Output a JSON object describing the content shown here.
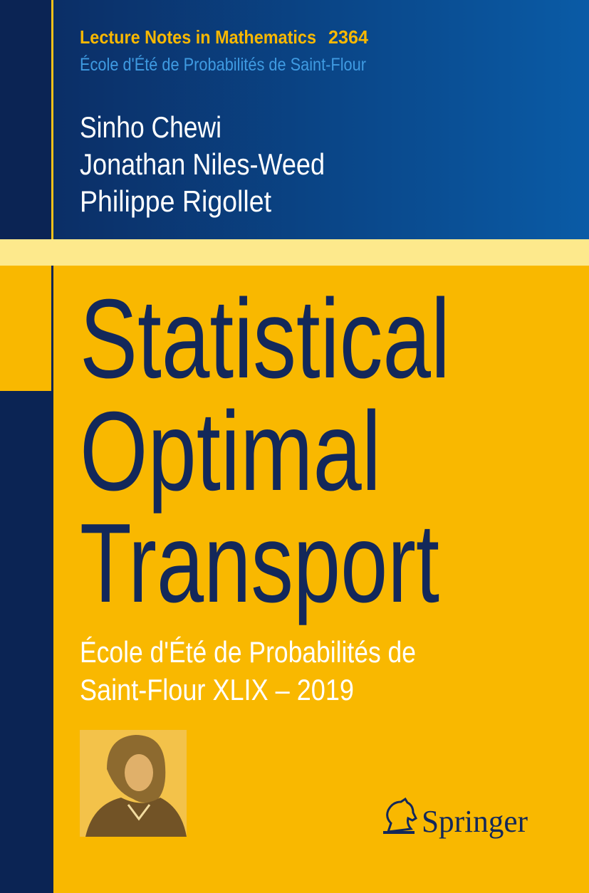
{
  "series": {
    "name": "Lecture Notes in Mathematics",
    "number": "2364",
    "subseries": "École d'Été de Probabilités de Saint-Flour"
  },
  "authors": [
    "Sinho Chewi",
    "Jonathan Niles-Weed",
    "Philippe Rigollet"
  ],
  "title": {
    "lines": [
      "Statistical",
      "Optimal",
      "Transport"
    ]
  },
  "subtitle": {
    "lines": [
      "École d'Été de Probabilités de",
      "Saint-Flour XLIX – 2019"
    ]
  },
  "publisher": "Springer"
}
